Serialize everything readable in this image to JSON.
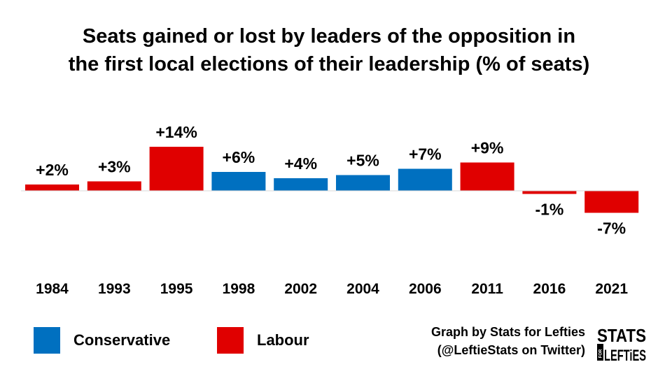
{
  "title_line1": "Seats gained or lost by leaders of the opposition in",
  "title_line2": "the first local elections of their leadership (% of seats)",
  "chart_data": {
    "type": "bar",
    "title": "Seats gained or lost by leaders of the opposition in the first local elections of their leadership (% of seats)",
    "categories": [
      "1984",
      "1993",
      "1995",
      "1998",
      "2002",
      "2004",
      "2006",
      "2011",
      "2016",
      "2021"
    ],
    "values": [
      2,
      3,
      14,
      6,
      4,
      5,
      7,
      9,
      -1,
      -7
    ],
    "labels": [
      "+2%",
      "+3%",
      "+14%",
      "+6%",
      "+4%",
      "+5%",
      "+7%",
      "+9%",
      "-1%",
      "-7%"
    ],
    "party": [
      "Labour",
      "Labour",
      "Labour",
      "Conservative",
      "Conservative",
      "Conservative",
      "Conservative",
      "Labour",
      "Labour",
      "Labour"
    ],
    "colors": {
      "Conservative": "#0070c0",
      "Labour": "#e00000"
    },
    "legend": [
      "Conservative",
      "Labour"
    ],
    "legend_position": "bottom-left",
    "grid": false
  },
  "legend": {
    "conservative": "Conservative",
    "labour": "Labour"
  },
  "credit": {
    "line1": "Graph by Stats for Lefties",
    "line2": "(@LeftieStats on Twitter)"
  },
  "logo": {
    "top": "STATS",
    "side": "FOR",
    "bottom": "LEFTiES"
  }
}
